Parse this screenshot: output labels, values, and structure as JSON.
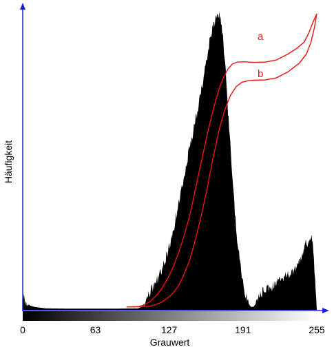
{
  "chart_data": {
    "type": "area",
    "xlabel": "Grauwert",
    "ylabel": "Häufigkeit",
    "xlim": [
      0,
      255
    ],
    "ylim": [
      0,
      1
    ],
    "x_ticks": [
      "0",
      "63",
      "127",
      "191",
      "255"
    ],
    "grid": false,
    "colors": {
      "histogram": "#000000",
      "curves": "#ee1111",
      "axes": "#1f1fd6"
    },
    "histogram": {
      "x": [
        0,
        2,
        6,
        10,
        20,
        40,
        60,
        80,
        100,
        103,
        105,
        108,
        112,
        118,
        122,
        126,
        130,
        134,
        138,
        142,
        146,
        150,
        154,
        158,
        162,
        164,
        166,
        168,
        170,
        172,
        174,
        176,
        178,
        180,
        182,
        184,
        186,
        188,
        190,
        192,
        194,
        196,
        198,
        200,
        202,
        204,
        206,
        210,
        214,
        218,
        222,
        226,
        230,
        234,
        238,
        242,
        244,
        246,
        248,
        250,
        252,
        253,
        254,
        255
      ],
      "y": [
        0.05,
        0.03,
        0.015,
        0.01,
        0.005,
        0.004,
        0.004,
        0.004,
        0.005,
        0.01,
        0.02,
        0.04,
        0.07,
        0.11,
        0.15,
        0.2,
        0.26,
        0.33,
        0.41,
        0.49,
        0.57,
        0.64,
        0.72,
        0.81,
        0.9,
        0.94,
        0.96,
        0.98,
        1.0,
        0.97,
        0.9,
        0.8,
        0.67,
        0.55,
        0.43,
        0.33,
        0.24,
        0.17,
        0.11,
        0.07,
        0.04,
        0.02,
        0.01,
        0.01,
        0.02,
        0.04,
        0.055,
        0.065,
        0.075,
        0.085,
        0.095,
        0.11,
        0.12,
        0.13,
        0.15,
        0.18,
        0.21,
        0.23,
        0.22,
        0.25,
        0.2,
        0.14,
        0.05,
        0.0
      ]
    },
    "series": [
      {
        "name": "a",
        "x": [
          90,
          100,
          105,
          110,
          115,
          120,
          125,
          130,
          135,
          140,
          145,
          150,
          155,
          160,
          165,
          170,
          174,
          178,
          182,
          186,
          192,
          200,
          210,
          220,
          230,
          238,
          244,
          248,
          252,
          255
        ],
        "y": [
          0.01,
          0.011,
          0.016,
          0.027,
          0.045,
          0.068,
          0.1,
          0.14,
          0.19,
          0.25,
          0.32,
          0.41,
          0.5,
          0.59,
          0.67,
          0.74,
          0.78,
          0.81,
          0.827,
          0.833,
          0.834,
          0.832,
          0.833,
          0.84,
          0.86,
          0.88,
          0.9,
          0.93,
          0.97,
          0.995
        ]
      },
      {
        "name": "b",
        "x": [
          90,
          100,
          110,
          115,
          120,
          125,
          130,
          135,
          140,
          145,
          150,
          155,
          160,
          165,
          170,
          175,
          180,
          185,
          190,
          195,
          200,
          210,
          220,
          230,
          240,
          246,
          250,
          253,
          255
        ],
        "y": [
          0.01,
          0.01,
          0.012,
          0.017,
          0.025,
          0.038,
          0.055,
          0.08,
          0.12,
          0.17,
          0.24,
          0.32,
          0.41,
          0.51,
          0.6,
          0.67,
          0.72,
          0.75,
          0.765,
          0.77,
          0.772,
          0.773,
          0.78,
          0.8,
          0.83,
          0.86,
          0.9,
          0.95,
          0.995
        ]
      }
    ]
  }
}
